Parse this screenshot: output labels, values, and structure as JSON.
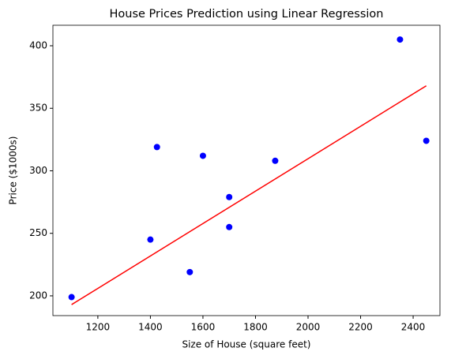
{
  "chart_data": {
    "type": "scatter",
    "title": "House Prices Prediction using Linear Regression",
    "xlabel": "Size of House (square feet)",
    "ylabel": "Price ($1000s)",
    "series": [
      {
        "type": "scatter",
        "color": "#0000ff",
        "x": [
          1400,
          1600,
          1700,
          1875,
          1100,
          1550,
          2350,
          2450,
          1425,
          1700
        ],
        "values": [
          245,
          312,
          279,
          308,
          199,
          219,
          405,
          324,
          319,
          255
        ]
      },
      {
        "type": "line",
        "color": "#ff0000",
        "x": [
          1100,
          2450
        ],
        "values": [
          193,
          368
        ]
      }
    ],
    "xlim": [
      1029,
      2502
    ],
    "xticks": [
      1200,
      1400,
      1600,
      1800,
      2000,
      2200,
      2400
    ],
    "ylim": [
      184.2,
      416.4
    ],
    "yticks": [
      200,
      250,
      300,
      350,
      400
    ],
    "grid": false
  }
}
